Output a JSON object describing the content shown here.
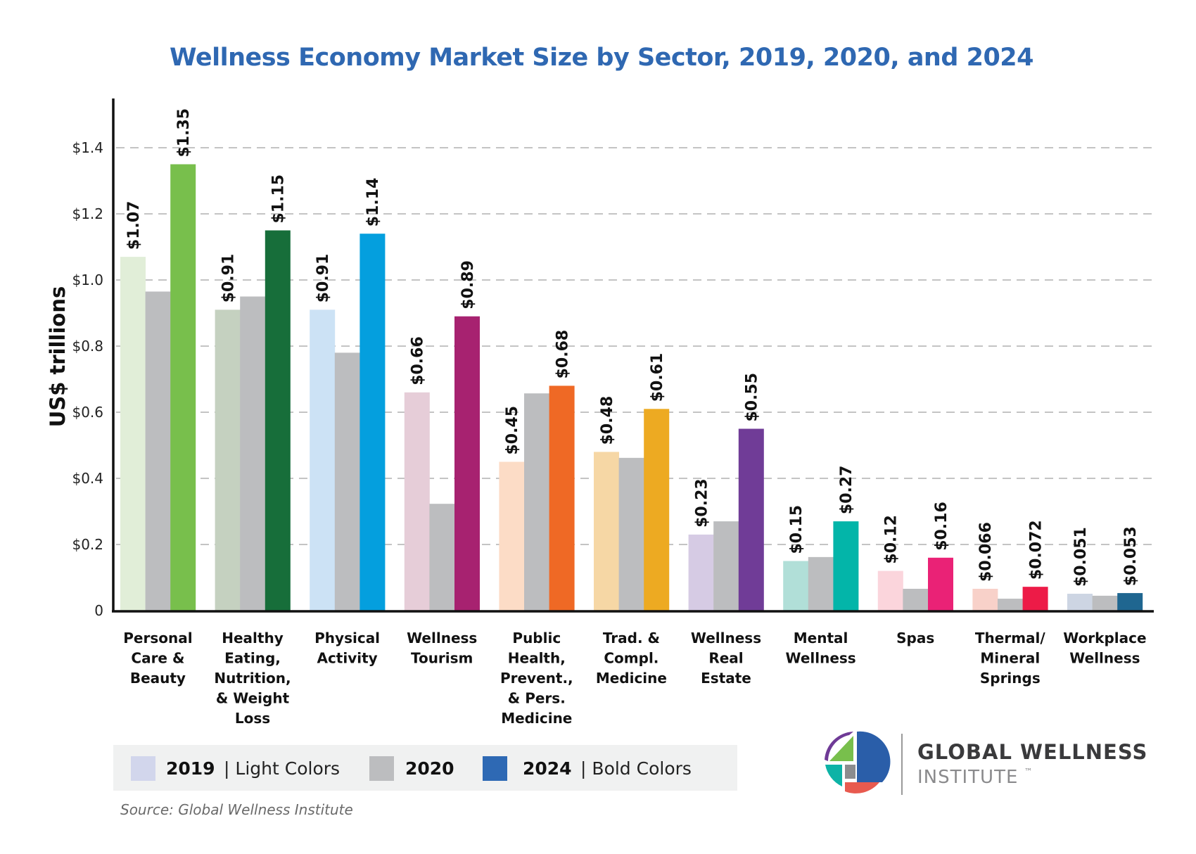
{
  "chart_data": {
    "type": "bar",
    "title": "Wellness Economy Market Size by Sector, 2019, 2020, and 2024",
    "xlabel": "",
    "ylabel": "US$ trillions",
    "ylim": [
      0,
      1.5
    ],
    "yticks": [
      0,
      0.2,
      0.4,
      0.6,
      0.8,
      1.0,
      1.2,
      1.4
    ],
    "ytick_labels": [
      "0",
      "$0.2",
      "$0.4",
      "$0.6",
      "$0.8",
      "$1.0",
      "$1.2",
      "$1.4"
    ],
    "grid": true,
    "legend_position": "bottom-left",
    "categories": [
      [
        "Personal",
        "Care &",
        "Beauty"
      ],
      [
        "Healthy",
        "Eating,",
        "Nutrition,",
        "& Weight",
        "Loss"
      ],
      [
        "Physical",
        "Activity"
      ],
      [
        "Wellness",
        "Tourism"
      ],
      [
        "Public",
        "Health,",
        "Prevent.,",
        "& Pers.",
        "Medicine"
      ],
      [
        "Trad. &",
        "Compl.",
        "Medicine"
      ],
      [
        "Wellness",
        "Real",
        "Estate"
      ],
      [
        "Mental",
        "Wellness"
      ],
      [
        "Spas"
      ],
      [
        "Thermal/",
        "Mineral",
        "Springs"
      ],
      [
        "Workplace",
        "Wellness"
      ]
    ],
    "series": [
      {
        "name": "2019",
        "values": [
          1.07,
          0.91,
          0.91,
          0.66,
          0.45,
          0.48,
          0.23,
          0.15,
          0.12,
          0.066,
          0.051
        ],
        "data_labels": [
          "$1.07",
          "$0.91",
          "$0.91",
          "$0.66",
          "$0.45",
          "$0.48",
          "$0.23",
          "$0.15",
          "$0.12",
          "$0.066",
          "$0.051"
        ],
        "colors": [
          "#e1eed8",
          "#c5d1c0",
          "#cce2f5",
          "#e6cdd8",
          "#fcdcc6",
          "#f6d7a5",
          "#d6cbe4",
          "#b1dfd8",
          "#fbd5dc",
          "#f8d1c9",
          "#cdd5e3"
        ]
      },
      {
        "name": "2020",
        "values": [
          0.965,
          0.95,
          0.78,
          0.323,
          0.657,
          0.462,
          0.27,
          0.162,
          0.066,
          0.036,
          0.045
        ],
        "data_labels": [],
        "colors": [
          "#bcbdbf",
          "#bcbdbf",
          "#bcbdbf",
          "#bcbdbf",
          "#bcbdbf",
          "#bcbdbf",
          "#bcbdbf",
          "#bcbdbf",
          "#bcbdbf",
          "#bcbdbf",
          "#bcbdbf"
        ]
      },
      {
        "name": "2024",
        "values": [
          1.35,
          1.15,
          1.14,
          0.89,
          0.68,
          0.61,
          0.55,
          0.27,
          0.16,
          0.072,
          0.053
        ],
        "data_labels": [
          "$1.35",
          "$1.15",
          "$1.14",
          "$0.89",
          "$0.68",
          "$0.61",
          "$0.55",
          "$0.27",
          "$0.16",
          "$0.072",
          "$0.053"
        ],
        "colors": [
          "#78bf4c",
          "#176e3a",
          "#049fde",
          "#a72270",
          "#ef6925",
          "#edaa22",
          "#703c97",
          "#03b5a9",
          "#ea2276",
          "#ed1b47",
          "#1f6690"
        ]
      }
    ],
    "legend": [
      {
        "year": "2019",
        "desc": "| Light Colors",
        "color": "#d2d6ec"
      },
      {
        "year": "2020",
        "desc": "",
        "color": "#bcbdbf"
      },
      {
        "year": "2024",
        "desc": "| Bold Colors",
        "color": "#2e69b4"
      }
    ],
    "source": "Source: Global Wellness Institute"
  },
  "branding": {
    "logo_line1": "GLOBAL WELLNESS",
    "logo_line2": "INSTITUTE",
    "trademark": "™",
    "logo_colors": {
      "purple": "#6f3a96",
      "green": "#78bf4c",
      "blue": "#2a5ea9",
      "teal": "#0db3a6",
      "gray": "#8b8c8e",
      "red": "#e85a4f"
    }
  },
  "colors": {
    "title": "#2f68b2",
    "axis": "#111111",
    "grid": "#c4c4c4",
    "legend_bg": "#f0f1f1"
  }
}
